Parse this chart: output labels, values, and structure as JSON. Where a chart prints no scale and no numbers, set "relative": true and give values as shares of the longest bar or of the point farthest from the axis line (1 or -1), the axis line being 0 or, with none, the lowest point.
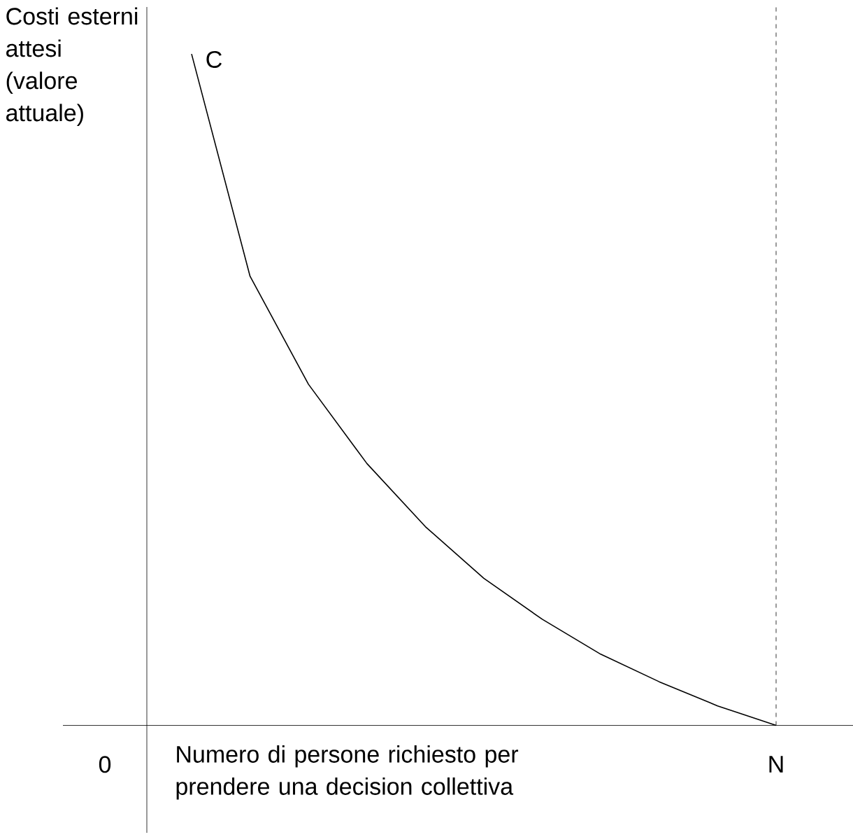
{
  "chart_data": {
    "type": "line",
    "relative": true,
    "ylabel": "Costi esterni attesi (valore attuale)",
    "xlabel": "Numero di persone richiesto per prendere una decision collettiva",
    "categories": [
      null,
      null,
      null,
      null,
      null,
      null,
      null,
      null,
      null,
      null,
      null
    ],
    "series": [
      {
        "color": "#000000",
        "values": [
          1,
          0.669,
          0.508,
          0.39,
          0.296,
          0.219,
          0.158,
          0.106,
          0.065,
          0.029,
          0
        ]
      }
    ],
    "annotations": [
      "C",
      "0"
    ],
    "ref_lines": [
      {
        "axis": "x",
        "label": "N",
        "line_style": "dashed",
        "color": "#000000"
      }
    ],
    "marker": "none",
    "line_style": "solid"
  }
}
